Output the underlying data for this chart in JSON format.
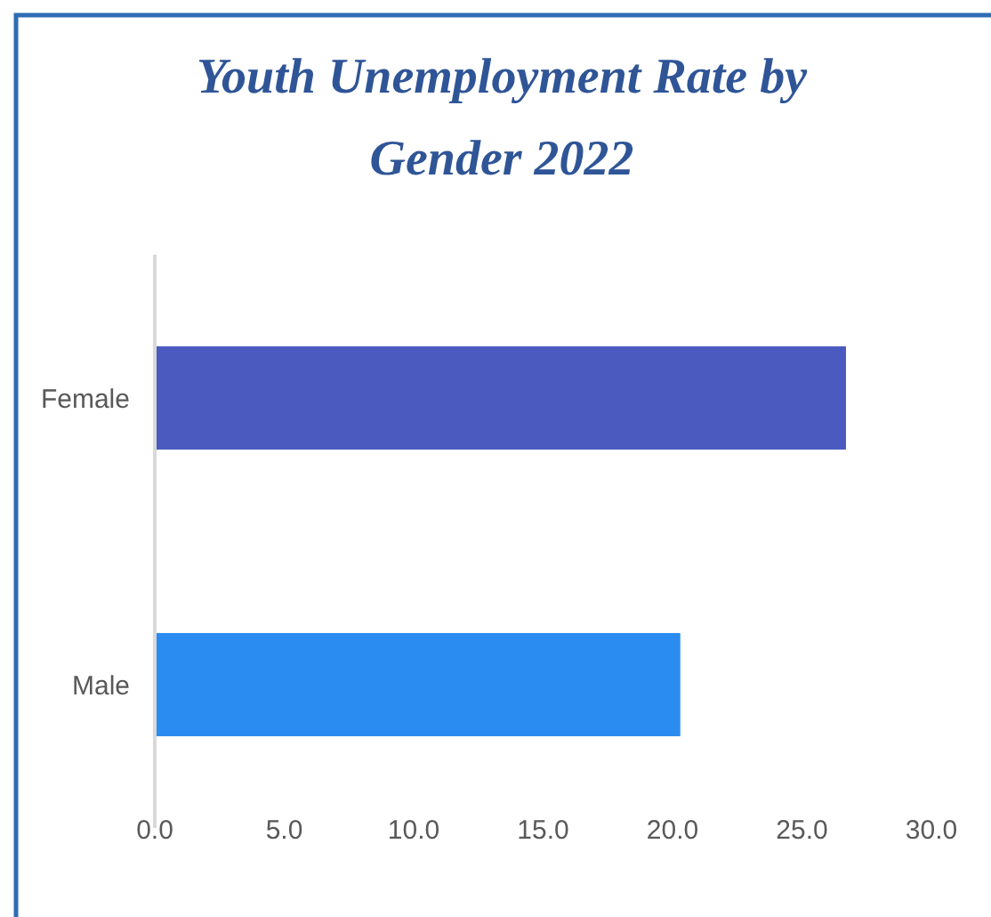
{
  "chart_data": {
    "type": "bar",
    "orientation": "horizontal",
    "title": "Youth Unemployment Rate by Gender 2022",
    "categories": [
      "Female",
      "Male"
    ],
    "values": [
      26.7,
      20.3
    ],
    "colors": [
      "#4a5abf",
      "#2a8cf0"
    ],
    "xlim": [
      0,
      30
    ],
    "xticks": [
      {
        "value": 0,
        "label": "0.0"
      },
      {
        "value": 5,
        "label": "5.0"
      },
      {
        "value": 10,
        "label": "10.0"
      },
      {
        "value": 15,
        "label": "15.0"
      },
      {
        "value": 20,
        "label": "20.0"
      },
      {
        "value": 25,
        "label": "25.0"
      },
      {
        "value": 30,
        "label": "30.0"
      }
    ]
  }
}
